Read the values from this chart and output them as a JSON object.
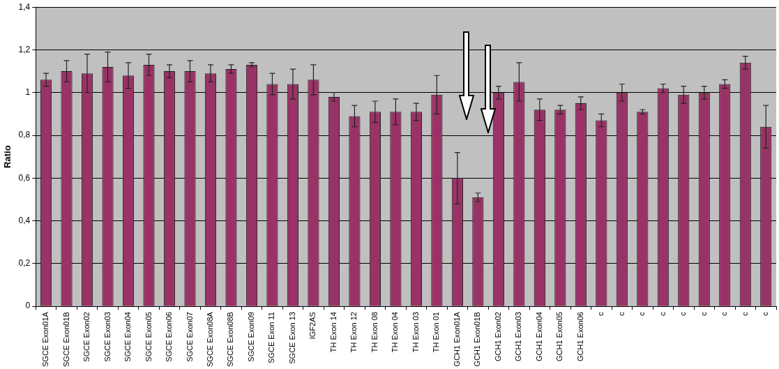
{
  "chart_data": {
    "type": "bar",
    "ylabel": "Ratio",
    "categories": [
      "SGCE Exon01A",
      "SGCE Exon01B",
      "SGCE Exon02",
      "SGCE Exon03",
      "SGCE Exon04",
      "SGCE Exon05",
      "SGCE Exon06",
      "SGCE Exon07",
      "SGCE Exon08A",
      "SGCE Exon08B",
      "SGCE Exon09",
      "SGCE Exon 11",
      "SGCE Exon 13",
      "IGF2AS",
      "TH Exon 14",
      "TH Exon 12",
      "TH Exon 08",
      "TH Exon 04",
      "TH Exon 03",
      "TH Exon 01",
      "GCH1 Exon01A",
      "GCH1 Exon01B",
      "GCH1 Exon02",
      "GCH1 Exon03",
      "GCH1 Exon04",
      "GCH1 Exon05",
      "GCH1 Exon06",
      "c",
      "c",
      "c",
      "c",
      "c",
      "c",
      "c",
      "c",
      "c"
    ],
    "values": [
      1.06,
      1.1,
      1.09,
      1.12,
      1.08,
      1.13,
      1.1,
      1.1,
      1.09,
      1.11,
      1.13,
      1.04,
      1.04,
      1.06,
      0.98,
      0.89,
      0.91,
      0.91,
      0.91,
      0.99,
      0.6,
      0.51,
      1.0,
      1.05,
      0.92,
      0.92,
      0.95,
      0.87,
      1.0,
      0.91,
      1.02,
      0.99,
      1.0,
      1.04,
      1.14,
      0.84
    ],
    "errors": [
      0.03,
      0.05,
      0.09,
      0.07,
      0.06,
      0.05,
      0.03,
      0.05,
      0.04,
      0.02,
      0.01,
      0.05,
      0.07,
      0.07,
      0.02,
      0.05,
      0.05,
      0.06,
      0.04,
      0.09,
      0.12,
      0.02,
      0.03,
      0.09,
      0.05,
      0.02,
      0.03,
      0.03,
      0.04,
      0.01,
      0.02,
      0.04,
      0.03,
      0.02,
      0.03,
      0.1
    ],
    "color": "#993366",
    "ylim": [
      0,
      1.4
    ],
    "yticks": [
      0,
      {
        "value": 0.2,
        "label": "0,2"
      },
      {
        "value": 0.4,
        "label": "0,4"
      },
      {
        "value": 0.6,
        "label": "0,6"
      },
      {
        "value": 0.8,
        "label": "0,8"
      },
      1,
      {
        "value": 1.2,
        "label": "1,2"
      },
      {
        "value": 1.4,
        "label": "1,4"
      }
    ],
    "grid": "y",
    "legend": false
  }
}
